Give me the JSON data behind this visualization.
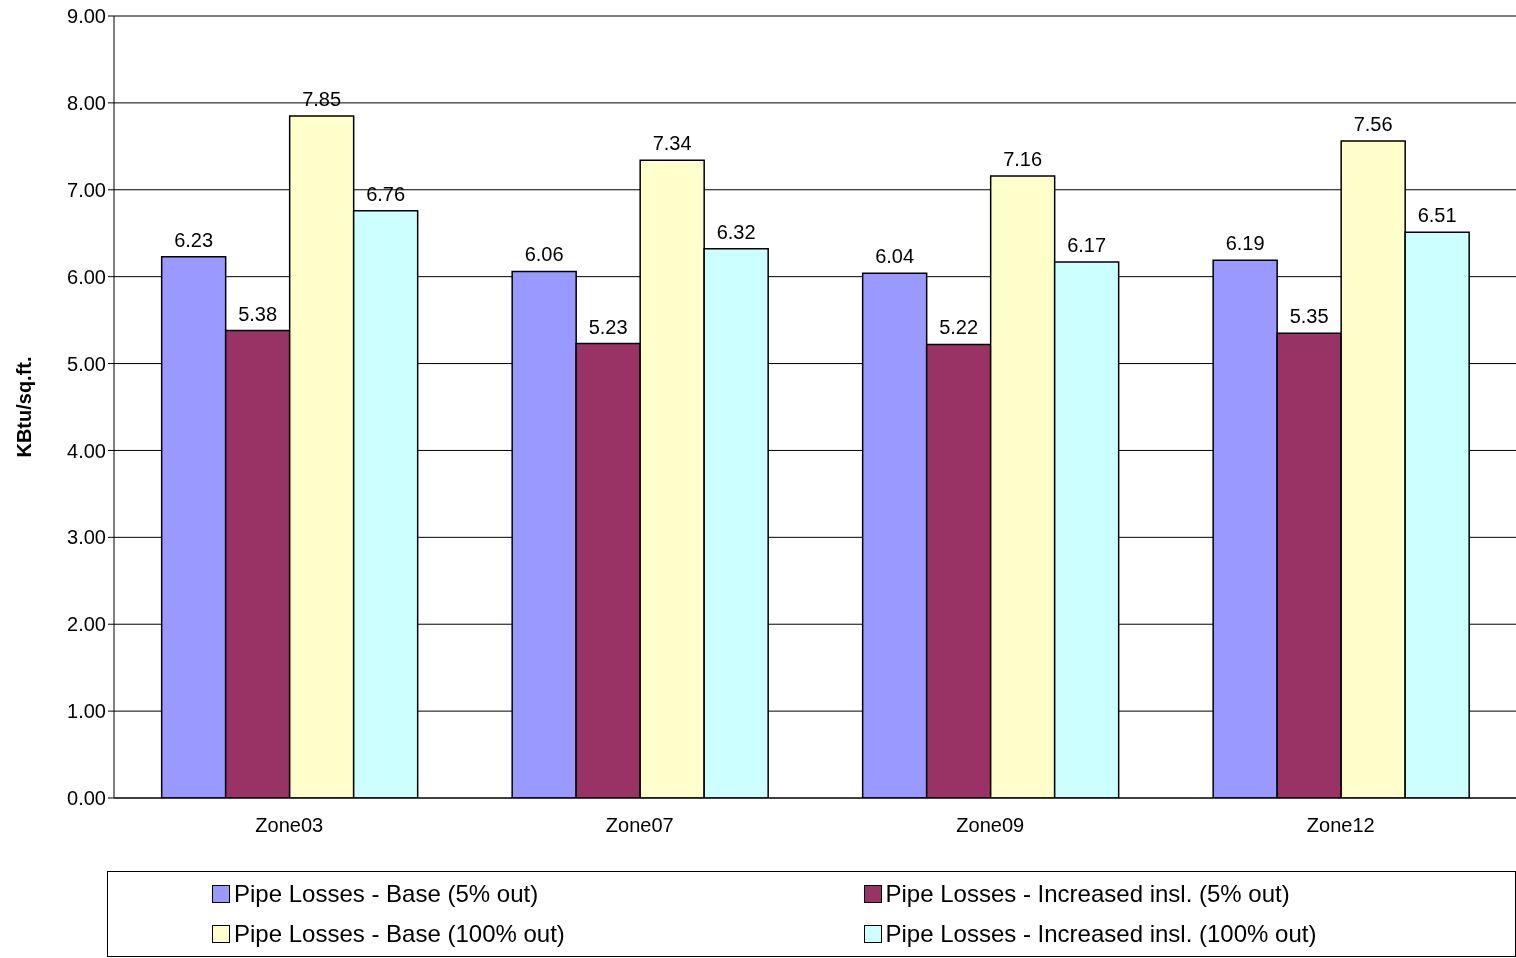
{
  "chart_data": {
    "type": "bar",
    "ylabel": "KBtu/sq.ft.",
    "categories": [
      "Zone03",
      "Zone07",
      "Zone09",
      "Zone12"
    ],
    "series": [
      {
        "name": "Pipe Losses - Base (5% out)",
        "color": "#9999ff",
        "values": [
          6.23,
          6.06,
          6.04,
          6.19
        ]
      },
      {
        "name": "Pipe Losses - Increased insl. (5% out)",
        "color": "#993366",
        "values": [
          5.38,
          5.23,
          5.22,
          5.35
        ]
      },
      {
        "name": "Pipe Losses - Base (100% out)",
        "color": "#ffffcc",
        "values": [
          7.85,
          7.34,
          7.16,
          7.56
        ]
      },
      {
        "name": "Pipe Losses - Increased insl. (100% out)",
        "color": "#ccffff",
        "values": [
          6.76,
          6.32,
          6.17,
          6.51
        ]
      }
    ],
    "ylim": [
      0,
      9
    ],
    "yticks": [
      {
        "value": 0,
        "label": "0.00"
      },
      {
        "value": 1,
        "label": "1.00"
      },
      {
        "value": 2,
        "label": "2.00"
      },
      {
        "value": 3,
        "label": "3.00"
      },
      {
        "value": 4,
        "label": "4.00"
      },
      {
        "value": 5,
        "label": "5.00"
      },
      {
        "value": 6,
        "label": "6.00"
      },
      {
        "value": 7,
        "label": "7.00"
      },
      {
        "value": 8,
        "label": "8.00"
      },
      {
        "value": 9,
        "label": "9.00"
      }
    ],
    "grid": "y",
    "legend": "bottom",
    "data_labels": true
  }
}
